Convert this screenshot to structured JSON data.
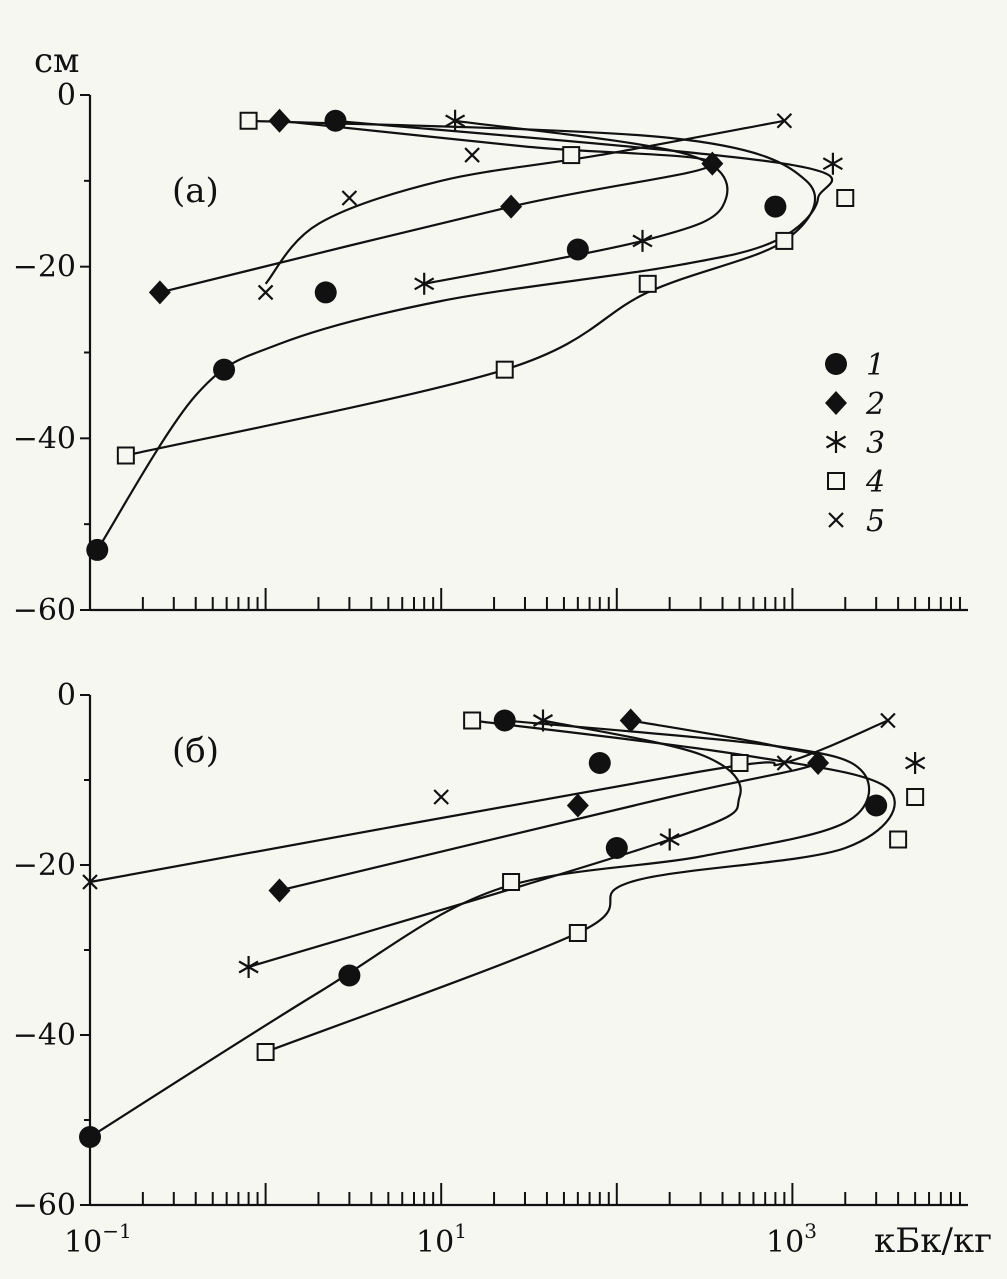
{
  "axis_texts": {
    "y_unit": "см",
    "x_unit": "кБк/кг",
    "x_tick_labels": [
      "10",
      "10",
      "10"
    ],
    "x_tick_exponents": [
      "−1",
      "1",
      "3"
    ]
  },
  "colors": {
    "ink": "#111111",
    "paper": "#f7f7f2"
  },
  "chart_data": [
    {
      "type": "scatter",
      "panel_label": "(а)",
      "xscale": "log",
      "xlim": [
        0.1,
        10000
      ],
      "ylim": [
        -60,
        0
      ],
      "yticks": [
        0,
        -20,
        -40,
        -60
      ],
      "ytick_labels": [
        "0",
        "−20",
        "−40",
        "−60"
      ],
      "xlabel": "",
      "ylabel": "см",
      "legend": {
        "position": "right",
        "entries": [
          "1",
          "2",
          "3",
          "4",
          "5"
        ]
      },
      "series": [
        {
          "name": "1",
          "marker": "circle",
          "points": [
            [
              2.5,
              -3
            ],
            [
              800,
              -13
            ],
            [
              60,
              -18
            ],
            [
              2.2,
              -23
            ],
            [
              0.58,
              -32
            ],
            [
              0.11,
              -53
            ]
          ],
          "curve": [
            [
              2.5,
              -3
            ],
            [
              900,
              -8
            ],
            [
              1400,
              -12
            ],
            [
              800,
              -17
            ],
            [
              200,
              -20
            ],
            [
              10,
              -24
            ],
            [
              1.2,
              -29
            ],
            [
              0.4,
              -35
            ],
            [
              0.11,
              -53
            ]
          ]
        },
        {
          "name": "2",
          "marker": "diamond",
          "points": [
            [
              1.2,
              -3
            ],
            [
              350,
              -8
            ],
            [
              25,
              -13
            ],
            [
              0.25,
              -23
            ]
          ],
          "curve": [
            [
              1.2,
              -3
            ],
            [
              30,
              -6
            ],
            [
              350,
              -8
            ],
            [
              25,
              -13
            ],
            [
              0.25,
              -23
            ]
          ]
        },
        {
          "name": "3",
          "marker": "asterisk",
          "points": [
            [
              12,
              -3
            ],
            [
              1700,
              -8
            ],
            [
              140,
              -17
            ],
            [
              8,
              -22
            ]
          ],
          "curve": [
            [
              12,
              -3
            ],
            [
              260,
              -7
            ],
            [
              400,
              -13
            ],
            [
              140,
              -17
            ],
            [
              8,
              -22
            ]
          ]
        },
        {
          "name": "4",
          "marker": "square",
          "points": [
            [
              0.8,
              -3
            ],
            [
              55,
              -7
            ],
            [
              2000,
              -12
            ],
            [
              900,
              -17
            ],
            [
              150,
              -22
            ],
            [
              23,
              -32
            ],
            [
              0.16,
              -42
            ]
          ],
          "curve": [
            [
              0.8,
              -3
            ],
            [
              200,
              -5
            ],
            [
              1200,
              -10
            ],
            [
              900,
              -17
            ],
            [
              150,
              -23
            ],
            [
              23,
              -32
            ],
            [
              0.16,
              -42
            ]
          ]
        },
        {
          "name": "5",
          "marker": "cross",
          "points": [
            [
              900,
              -3
            ],
            [
              15,
              -7
            ],
            [
              3,
              -12
            ],
            [
              1,
              -23
            ]
          ],
          "curve": [
            [
              900,
              -3
            ],
            [
              80,
              -7
            ],
            [
              10,
              -10
            ],
            [
              2,
              -15
            ],
            [
              1,
              -22
            ]
          ]
        }
      ]
    },
    {
      "type": "scatter",
      "panel_label": "(б)",
      "xscale": "log",
      "xlim": [
        0.1,
        10000
      ],
      "ylim": [
        -60,
        0
      ],
      "yticks": [
        0,
        -20,
        -40,
        -60
      ],
      "ytick_labels": [
        "0",
        "−20",
        "−40",
        "−60"
      ],
      "xlabel": "кБк/кг",
      "ylabel": "",
      "series": [
        {
          "name": "1",
          "marker": "circle",
          "points": [
            [
              23,
              -3
            ],
            [
              80,
              -8
            ],
            [
              3000,
              -13
            ],
            [
              100,
              -18
            ],
            [
              3,
              -33
            ],
            [
              0.1,
              -52
            ]
          ],
          "curve": [
            [
              23,
              -3
            ],
            [
              800,
              -6
            ],
            [
              2500,
              -9
            ],
            [
              2000,
              -15
            ],
            [
              300,
              -19
            ],
            [
              20,
              -23
            ],
            [
              2,
              -35
            ],
            [
              0.1,
              -52
            ]
          ]
        },
        {
          "name": "2",
          "marker": "diamond",
          "points": [
            [
              120,
              -3
            ],
            [
              1400,
              -8
            ],
            [
              60,
              -13
            ],
            [
              1.2,
              -23
            ]
          ],
          "curve": [
            [
              120,
              -3
            ],
            [
              800,
              -6
            ],
            [
              1400,
              -8
            ],
            [
              200,
              -12
            ],
            [
              1.2,
              -23
            ]
          ]
        },
        {
          "name": "3",
          "marker": "asterisk",
          "points": [
            [
              38,
              -3
            ],
            [
              5000,
              -8
            ],
            [
              200,
              -17
            ],
            [
              0.8,
              -32
            ]
          ],
          "curve": [
            [
              38,
              -3
            ],
            [
              300,
              -7
            ],
            [
              500,
              -12
            ],
            [
              200,
              -17
            ],
            [
              0.8,
              -32
            ]
          ]
        },
        {
          "name": "4",
          "marker": "square",
          "points": [
            [
              15,
              -3
            ],
            [
              500,
              -8
            ],
            [
              5000,
              -12
            ],
            [
              4000,
              -17
            ],
            [
              25,
              -22
            ],
            [
              60,
              -28
            ],
            [
              1,
              -42
            ]
          ],
          "curve": [
            [
              15,
              -3
            ],
            [
              500,
              -7
            ],
            [
              3500,
              -11
            ],
            [
              2000,
              -18
            ],
            [
              120,
              -22
            ],
            [
              60,
              -28
            ],
            [
              1,
              -42
            ]
          ]
        },
        {
          "name": "5",
          "marker": "cross",
          "points": [
            [
              3500,
              -3
            ],
            [
              900,
              -8
            ],
            [
              10,
              -12
            ],
            [
              0.1,
              -22
            ]
          ],
          "curve": [
            [
              3500,
              -3
            ],
            [
              900,
              -8
            ],
            [
              300,
              -9
            ],
            [
              0.1,
              -22
            ]
          ]
        }
      ]
    }
  ]
}
